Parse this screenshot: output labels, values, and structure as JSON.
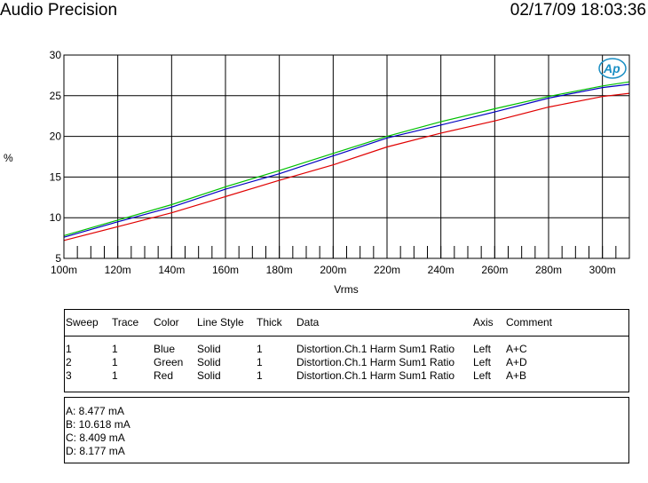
{
  "header": {
    "title": "Audio Precision",
    "timestamp": "02/17/09 18:03:36"
  },
  "logo": {
    "text": "Ap",
    "color": "#1a8fc4"
  },
  "chart_data": {
    "type": "line",
    "xlabel": "Vrms",
    "ylabel": "%",
    "xlim": [
      0.1,
      0.31
    ],
    "ylim": [
      5,
      30
    ],
    "x_ticks": [
      0.1,
      0.12,
      0.14,
      0.16,
      0.18,
      0.2,
      0.22,
      0.24,
      0.26,
      0.28,
      0.3
    ],
    "x_tick_labels": [
      "100m",
      "120m",
      "140m",
      "160m",
      "180m",
      "200m",
      "220m",
      "240m",
      "260m",
      "280m",
      "300m"
    ],
    "y_ticks": [
      5,
      10,
      15,
      20,
      25,
      30
    ],
    "y_tick_labels": [
      "5",
      "10",
      "15",
      "20",
      "25",
      "30"
    ],
    "grid": true,
    "series": [
      {
        "name": "Blue",
        "color": "#0000c0",
        "x": [
          0.1,
          0.12,
          0.14,
          0.16,
          0.18,
          0.2,
          0.22,
          0.24,
          0.26,
          0.28,
          0.3,
          0.31
        ],
        "y": [
          7.6,
          9.5,
          11.3,
          13.5,
          15.4,
          17.6,
          19.8,
          21.4,
          23.0,
          24.7,
          26.0,
          26.4
        ]
      },
      {
        "name": "Green",
        "color": "#00c000",
        "x": [
          0.1,
          0.12,
          0.14,
          0.16,
          0.18,
          0.2,
          0.22,
          0.24,
          0.26,
          0.28,
          0.3,
          0.31
        ],
        "y": [
          7.8,
          9.7,
          11.6,
          13.8,
          15.8,
          17.9,
          20.0,
          21.8,
          23.4,
          24.9,
          26.2,
          26.7
        ]
      },
      {
        "name": "Red",
        "color": "#e00000",
        "x": [
          0.1,
          0.12,
          0.14,
          0.16,
          0.18,
          0.2,
          0.22,
          0.24,
          0.26,
          0.28,
          0.3,
          0.31
        ],
        "y": [
          7.2,
          8.9,
          10.6,
          12.6,
          14.6,
          16.5,
          18.7,
          20.4,
          21.9,
          23.6,
          24.9,
          25.3
        ]
      }
    ]
  },
  "legend_table": {
    "headers": [
      "Sweep",
      "Trace",
      "Color",
      "Line Style",
      "Thick",
      "Data",
      "Axis",
      "Comment"
    ],
    "rows": [
      [
        "1",
        "1",
        "Blue",
        "Solid",
        "1",
        "Distortion.Ch.1 Harm Sum1 Ratio",
        "Left",
        "A+C"
      ],
      [
        "2",
        "1",
        "Green",
        "Solid",
        "1",
        "Distortion.Ch.1 Harm Sum1 Ratio",
        "Left",
        "A+D"
      ],
      [
        "3",
        "1",
        "Red",
        "Solid",
        "1",
        "Distortion.Ch.1 Harm Sum1 Ratio",
        "Left",
        "A+B"
      ]
    ]
  },
  "notes": [
    "A: 8.477 mA",
    "B: 10.618 mA",
    "C: 8.409 mA",
    "D: 8.177 mA"
  ]
}
